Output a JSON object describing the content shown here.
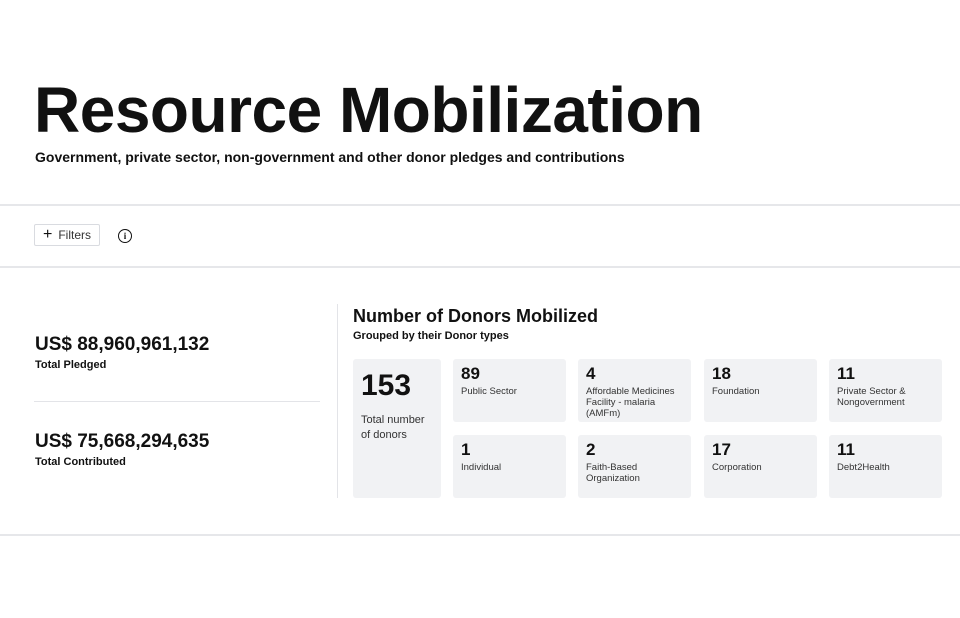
{
  "header": {
    "title": "Resource Mobilization",
    "subtitle": "Government, private sector, non-government and other donor pledges and contributions"
  },
  "toolbar": {
    "filters_label": "Filters",
    "filters_icon": "plus-icon",
    "info_icon": "info-icon"
  },
  "stats": {
    "pledged_amount": "US$ 88,960,961,132",
    "pledged_label": "Total Pledged",
    "contributed_amount": "US$ 75,668,294,635",
    "contributed_label": "Total Contributed"
  },
  "donors": {
    "title": "Number of Donors Mobilized",
    "subtitle": "Grouped by their Donor types",
    "total_count": "153",
    "total_label": "Total number of donors",
    "types": [
      {
        "count": "89",
        "label": "Public Sector"
      },
      {
        "count": "4",
        "label": "Affordable Medicines Facility - malaria (AMFm)"
      },
      {
        "count": "18",
        "label": "Foundation"
      },
      {
        "count": "11",
        "label": "Private Sector & Nongovernment"
      },
      {
        "count": "1",
        "label": "Individual"
      },
      {
        "count": "2",
        "label": "Faith-Based Organization"
      },
      {
        "count": "17",
        "label": "Corporation"
      },
      {
        "count": "11",
        "label": "Debt2Health"
      }
    ]
  },
  "colors": {
    "card_background": "#f1f2f4",
    "divider": "#e6e7ea",
    "text": "#111111"
  }
}
